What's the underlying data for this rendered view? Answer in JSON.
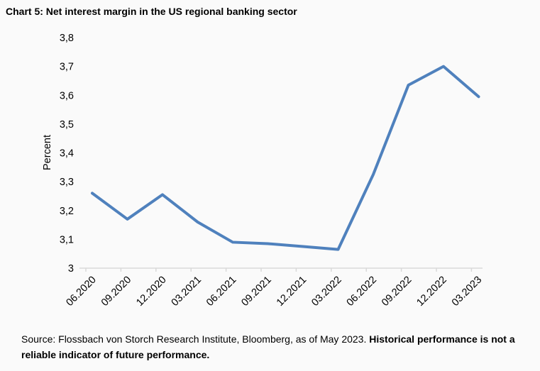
{
  "chart_data": {
    "type": "line",
    "title": "Chart 5: Net interest margin in the US regional banking sector",
    "ylabel": "Percent",
    "xlabel": "",
    "categories": [
      "06.2020",
      "09.2020",
      "12.2020",
      "03.2021",
      "06.2021",
      "09.2021",
      "12.2021",
      "03.2022",
      "06.2022",
      "09.2022",
      "12.2022",
      "03.2023"
    ],
    "series": [
      {
        "values": [
          3.26,
          3.17,
          3.255,
          3.16,
          3.09,
          3.085,
          3.075,
          3.065,
          3.325,
          3.635,
          3.7,
          3.595
        ],
        "color": "#4f81bd"
      }
    ],
    "ylim": [
      3,
      3.8
    ],
    "yticks": [
      "3",
      "3,1",
      "3,2",
      "3,3",
      "3,4",
      "3,5",
      "3,6",
      "3,7",
      "3,8"
    ],
    "grid": false,
    "legend": "none"
  },
  "source": {
    "text": "Source: Flossbach von Storch Research Institute, Bloomberg, as of May 2023. ",
    "bold": "Historical performance is not a reliable indicator of future performance."
  }
}
